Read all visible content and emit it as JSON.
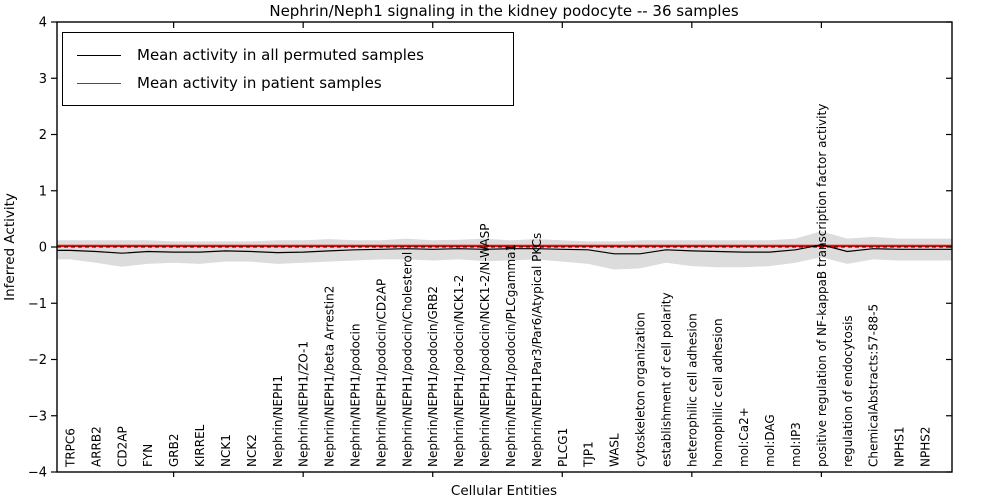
{
  "chart_data": {
    "type": "line",
    "title": "Nephrin/Neph1 signaling in the kidney podocyte -- 36 samples",
    "xlabel": "Cellular Entities",
    "ylabel": "Inferred Activity",
    "ylim": [
      -4,
      4
    ],
    "yticks": [
      -4,
      -3,
      -2,
      -1,
      0,
      1,
      2,
      3,
      4
    ],
    "grid": false,
    "legend_position": "upper left",
    "categories": [
      "TRPC6",
      "ARRB2",
      "CD2AP",
      "FYN",
      "GRB2",
      "KIRREL",
      "NCK1",
      "NCK2",
      "Nephrin/NEPH1",
      "Nephrin/NEPH1/ZO-1",
      "Nephrin/NEPH1/beta Arrestin2",
      "Nephrin/NEPH1/podocin",
      "Nephrin/NEPH1/podocin/CD2AP",
      "Nephrin/NEPH1/podocin/Cholesterol",
      "Nephrin/NEPH1/podocin/GRB2",
      "Nephrin/NEPH1/podocin/NCK1-2",
      "Nephrin/NEPH1/podocin/NCK1-2/N-WASP",
      "Nephrin/NEPH1/podocin/PLCgamma1",
      "Nephrin/NEPH1Par3/Par6/Atypical PKCs",
      "PLCG1",
      "TJP1",
      "WASL",
      "cytoskeleton organization",
      "establishment of cell polarity",
      "heterophilic cell adhesion",
      "homophilic cell adhesion",
      "mol:Ca2+",
      "mol:DAG",
      "mol:IP3",
      "positive regulation of NF-kappaB transcription factor activity",
      "regulation of endocytosis",
      "ChemicalAbstracts:57-88-5",
      "NPHS1",
      "NPHS2"
    ],
    "series": [
      {
        "name": "Mean activity in all permuted samples",
        "color": "#000000",
        "values": [
          -0.06,
          -0.08,
          -0.11,
          -0.08,
          -0.09,
          -0.09,
          -0.07,
          -0.08,
          -0.1,
          -0.09,
          -0.07,
          -0.05,
          -0.04,
          -0.03,
          -0.04,
          -0.03,
          -0.04,
          -0.03,
          -0.03,
          -0.04,
          -0.05,
          -0.12,
          -0.12,
          -0.05,
          -0.07,
          -0.08,
          -0.09,
          -0.09,
          -0.05,
          0.04,
          -0.08,
          -0.03,
          -0.04,
          -0.04
        ]
      },
      {
        "name": "Mean activity in patient samples",
        "color": "#ff0000",
        "values": [
          0.02,
          0.02,
          0.02,
          0.02,
          0.02,
          0.02,
          0.02,
          0.02,
          0.02,
          0.02,
          0.02,
          0.02,
          0.02,
          0.02,
          0.02,
          0.02,
          0.02,
          0.02,
          0.02,
          0.02,
          0.02,
          0.02,
          0.02,
          0.02,
          0.02,
          0.02,
          0.02,
          0.02,
          0.02,
          0.02,
          0.02,
          0.02,
          0.02,
          0.02
        ]
      }
    ],
    "band": {
      "name": "permuted-samples-range",
      "color": "#dcdcdc",
      "upper": [
        0.12,
        0.12,
        0.12,
        0.12,
        0.1,
        0.1,
        0.1,
        0.1,
        0.12,
        0.12,
        0.14,
        0.12,
        0.12,
        0.15,
        0.12,
        0.13,
        0.15,
        0.12,
        0.14,
        0.12,
        0.1,
        0.1,
        0.12,
        0.12,
        0.12,
        0.12,
        0.12,
        0.12,
        0.15,
        0.28,
        0.15,
        0.18,
        0.15,
        0.15
      ],
      "lower": [
        -0.22,
        -0.28,
        -0.35,
        -0.3,
        -0.28,
        -0.3,
        -0.26,
        -0.26,
        -0.3,
        -0.28,
        -0.26,
        -0.24,
        -0.22,
        -0.22,
        -0.24,
        -0.22,
        -0.25,
        -0.24,
        -0.22,
        -0.26,
        -0.3,
        -0.4,
        -0.38,
        -0.28,
        -0.34,
        -0.36,
        -0.36,
        -0.34,
        -0.28,
        -0.18,
        -0.3,
        -0.22,
        -0.24,
        -0.24
      ]
    },
    "zero_line": {
      "value": 0,
      "style": "dashed",
      "color": "#000000"
    }
  }
}
